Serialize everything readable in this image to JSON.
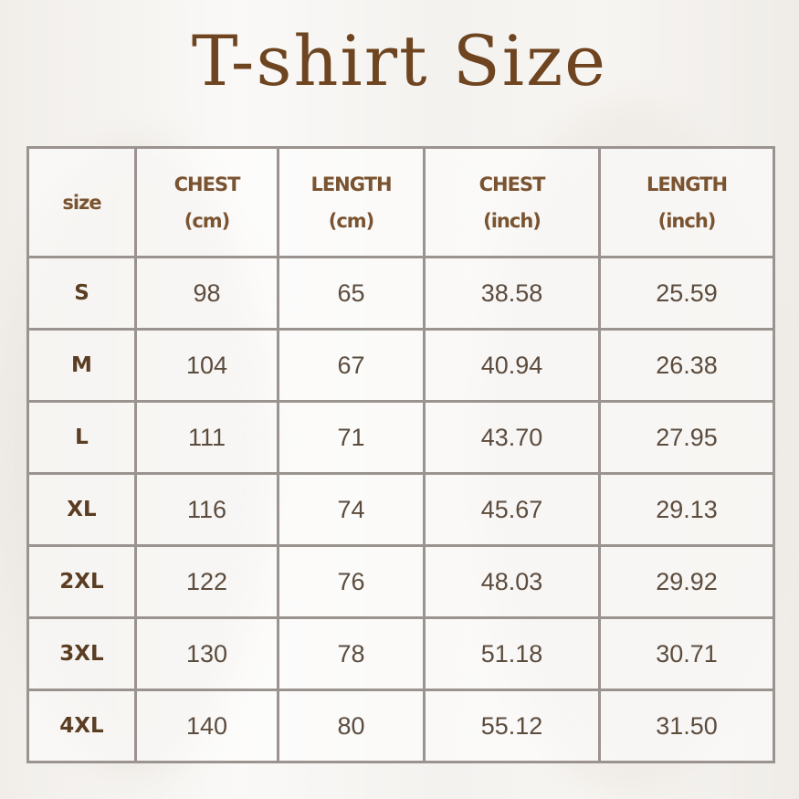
{
  "title": "T-shirt Size",
  "headers": [
    {
      "line1": "size",
      "line2": ""
    },
    {
      "line1": "CHEST",
      "line2": "(cm)"
    },
    {
      "line1": "LENGTH",
      "line2": "(cm)"
    },
    {
      "line1": "CHEST",
      "line2": "(inch)"
    },
    {
      "line1": "LENGTH",
      "line2": "(inch)"
    }
  ],
  "rows": [
    [
      "S",
      "98",
      "65",
      "38.58",
      "25.59"
    ],
    [
      "M",
      "104",
      "67",
      "40.94",
      "26.38"
    ],
    [
      "L",
      "111",
      "71",
      "43.70",
      "27.95"
    ],
    [
      "XL",
      "116",
      "74",
      "45.67",
      "29.13"
    ],
    [
      "2XL",
      "122",
      "76",
      "48.03",
      "29.92"
    ],
    [
      "3XL",
      "130",
      "78",
      "51.18",
      "30.71"
    ],
    [
      "4XL",
      "140",
      "80",
      "55.12",
      "31.50"
    ]
  ],
  "colors": {
    "title": "#6e4520",
    "grid": "#9a9390",
    "header": "#7a5330"
  }
}
